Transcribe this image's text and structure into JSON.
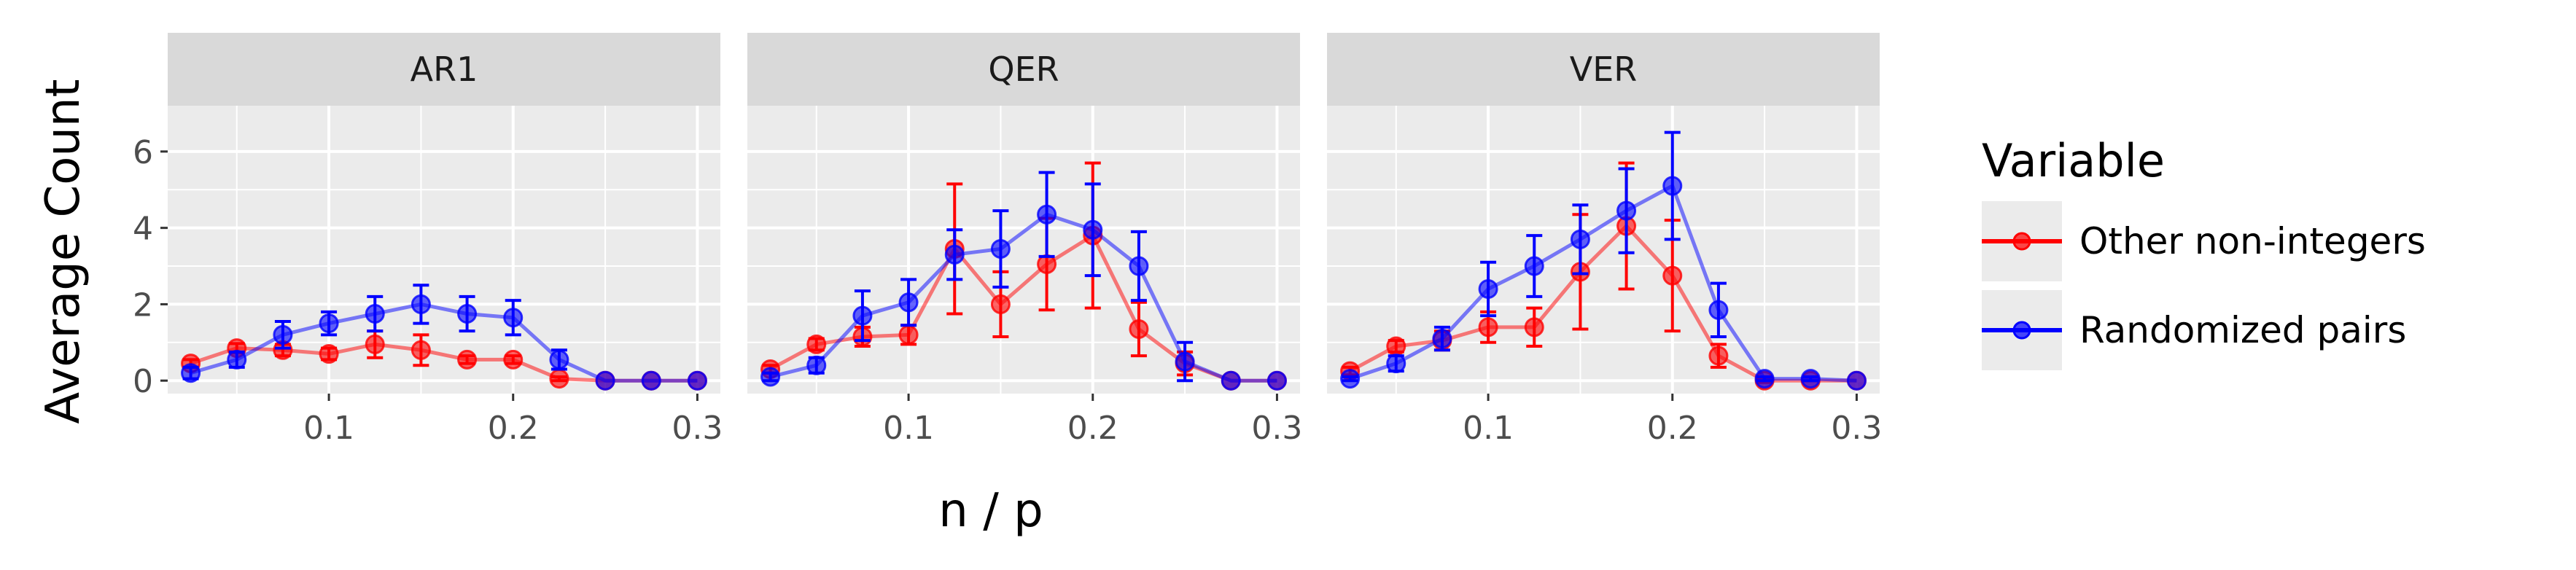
{
  "chart_data": {
    "type": "line",
    "facets": [
      "AR1",
      "QER",
      "VER"
    ],
    "xlabel": "n / p",
    "ylabel": "Average Count",
    "xlim": [
      0.0125,
      0.3125
    ],
    "ylim": [
      -0.34,
      7.2
    ],
    "x_ticks": [
      0.1,
      0.2,
      0.3
    ],
    "x_tick_labels": [
      "0.1",
      "0.2",
      "0.3"
    ],
    "y_ticks": [
      0,
      2,
      4,
      6
    ],
    "y_tick_labels": [
      "0",
      "2",
      "4",
      "6"
    ],
    "grid": true,
    "error_bars": true,
    "legend": {
      "title": "Variable",
      "position": "right",
      "entries": [
        "Other non-integers",
        "Randomized pairs"
      ]
    },
    "x": [
      0.025,
      0.05,
      0.075,
      0.1,
      0.125,
      0.15,
      0.175,
      0.2,
      0.225,
      0.25,
      0.275,
      0.3
    ],
    "panels": [
      {
        "facet": "AR1",
        "series": [
          {
            "name": "Other non-integers",
            "color": "#ff0000",
            "values": [
              0.45,
              0.85,
              0.8,
              0.7,
              0.95,
              0.8,
              0.55,
              0.55,
              0.05,
              0.0,
              0.0,
              0.0
            ],
            "err": [
              0.1,
              0.12,
              0.15,
              0.15,
              0.35,
              0.4,
              0.1,
              0.1,
              0.05,
              0.0,
              0.0,
              0.0
            ]
          },
          {
            "name": "Randomized pairs",
            "color": "#0000ff",
            "values": [
              0.2,
              0.55,
              1.2,
              1.5,
              1.75,
              2.0,
              1.75,
              1.65,
              0.55,
              0.0,
              0.0,
              0.0
            ],
            "err": [
              0.15,
              0.2,
              0.35,
              0.3,
              0.45,
              0.5,
              0.45,
              0.45,
              0.25,
              0.0,
              0.0,
              0.0
            ]
          }
        ]
      },
      {
        "facet": "QER",
        "series": [
          {
            "name": "Other non-integers",
            "color": "#ff0000",
            "values": [
              0.3,
              0.95,
              1.15,
              1.2,
              3.45,
              2.0,
              3.05,
              3.8,
              1.35,
              0.45,
              0.0,
              0.0
            ],
            "err": [
              0.1,
              0.15,
              0.25,
              0.25,
              1.7,
              0.85,
              1.2,
              1.9,
              0.7,
              0.3,
              0.0,
              0.0
            ]
          },
          {
            "name": "Randomized pairs",
            "color": "#0000ff",
            "values": [
              0.1,
              0.4,
              1.7,
              2.05,
              3.3,
              3.45,
              4.35,
              3.95,
              3.0,
              0.5,
              0.0,
              0.0
            ],
            "err": [
              0.1,
              0.2,
              0.65,
              0.6,
              0.65,
              1.0,
              1.1,
              1.2,
              0.9,
              0.5,
              0.0,
              0.0
            ]
          }
        ]
      },
      {
        "facet": "VER",
        "series": [
          {
            "name": "Other non-integers",
            "color": "#ff0000",
            "values": [
              0.25,
              0.9,
              1.05,
              1.4,
              1.4,
              2.85,
              4.05,
              2.75,
              0.65,
              0.0,
              0.0,
              0.0
            ],
            "err": [
              0.1,
              0.15,
              0.25,
              0.4,
              0.5,
              1.5,
              1.65,
              1.45,
              0.3,
              0.05,
              0.0,
              0.0
            ]
          },
          {
            "name": "Randomized pairs",
            "color": "#0000ff",
            "values": [
              0.05,
              0.45,
              1.1,
              2.4,
              3.0,
              3.7,
              4.45,
              5.1,
              1.85,
              0.05,
              0.05,
              0.0
            ],
            "err": [
              0.05,
              0.2,
              0.3,
              0.7,
              0.8,
              0.9,
              1.1,
              1.4,
              0.7,
              0.05,
              0.05,
              0.0
            ]
          }
        ]
      }
    ]
  }
}
